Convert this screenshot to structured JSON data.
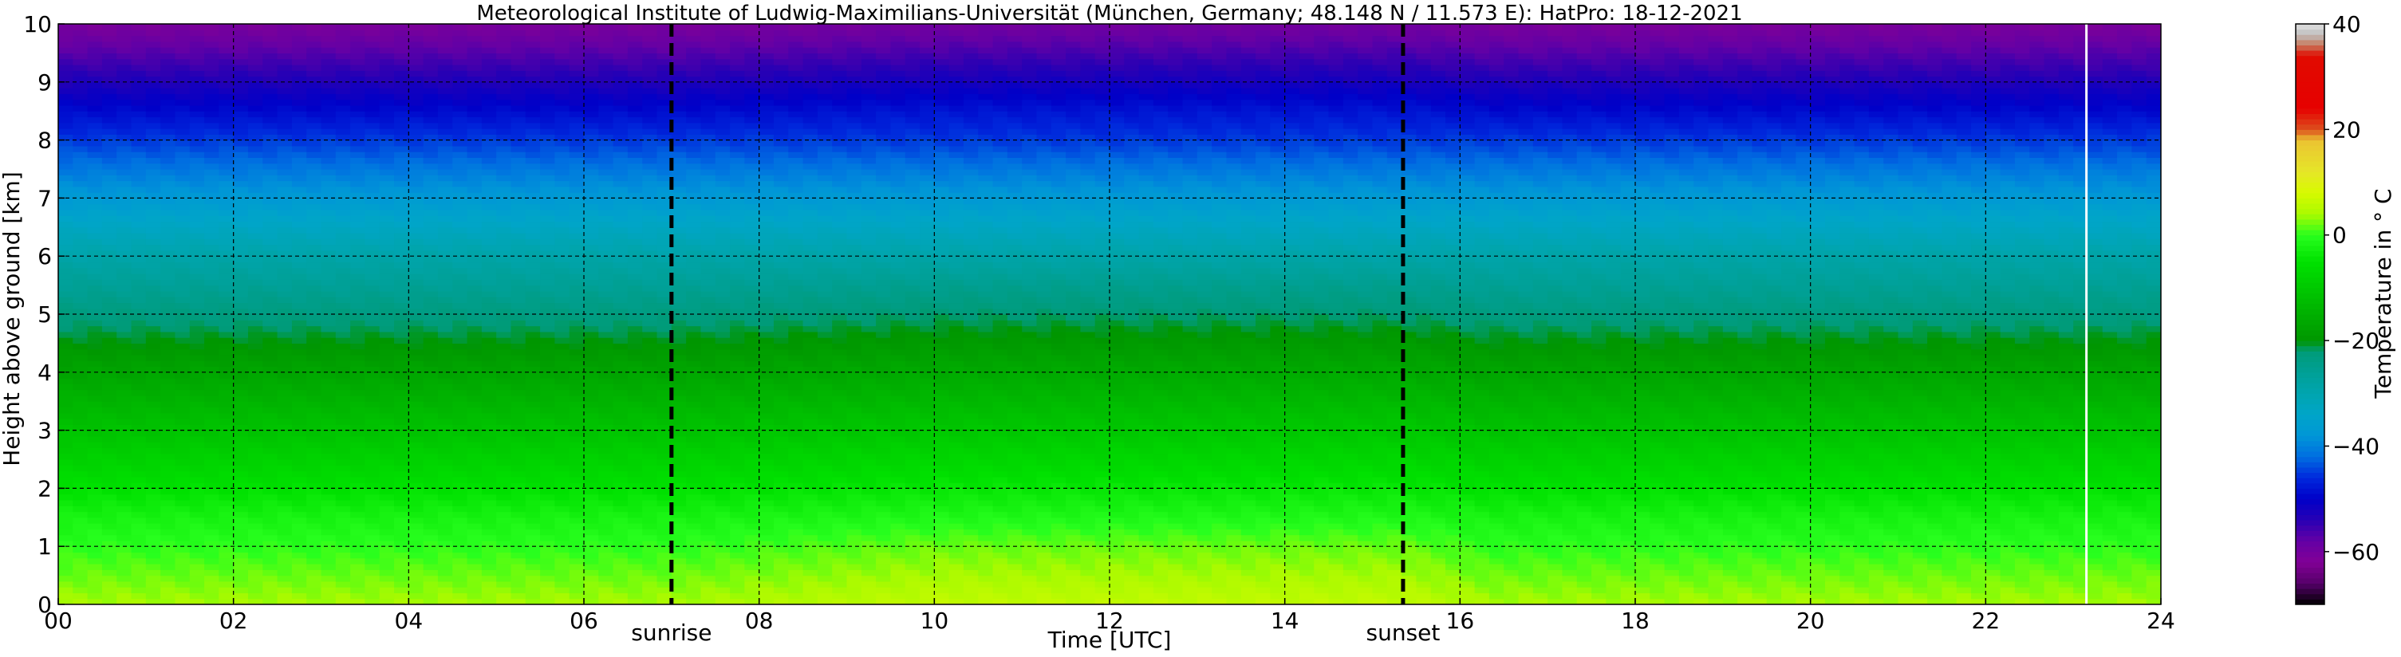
{
  "chart_data": {
    "type": "heatmap",
    "title": "Meteorological Institute of Ludwig-Maximilians-Universität (München, Germany; 48.148 N / 11.573 E):    HatPro: 18-12-2021",
    "xlabel": "Time [UTC]",
    "ylabel": "Height above ground [km]",
    "xlim": [
      0,
      24
    ],
    "ylim": [
      0,
      10
    ],
    "x_ticks": [
      "00",
      "02",
      "04",
      "06",
      "08",
      "10",
      "12",
      "14",
      "16",
      "18",
      "20",
      "22",
      "24"
    ],
    "y_ticks": [
      "0",
      "1",
      "2",
      "3",
      "4",
      "5",
      "6",
      "7",
      "8",
      "9",
      "10"
    ],
    "grid": true,
    "events": [
      {
        "label": "sunrise",
        "time": 7.0
      },
      {
        "label": "sunset",
        "time": 15.35
      }
    ],
    "data_gap_time": 23.15,
    "colorbar": {
      "label": "Temperature in ° C",
      "range": [
        -70,
        40
      ],
      "ticks": [
        "−60",
        "−40",
        "−20",
        "0",
        "20",
        "40"
      ]
    },
    "temperature_profile": {
      "height_km": [
        0,
        0.5,
        1,
        1.5,
        2,
        2.5,
        3,
        3.5,
        4,
        4.5,
        5,
        5.5,
        6,
        6.5,
        7,
        7.5,
        8,
        8.5,
        9,
        9.5,
        10
      ],
      "day_temperature_c": [
        6,
        4,
        2,
        -1,
        -4,
        -7,
        -10,
        -13,
        -16,
        -19,
        -22,
        -25,
        -29,
        -33,
        -37,
        -41,
        -45,
        -48,
        -52,
        -56,
        -60
      ],
      "night_temperature_c": [
        4,
        2,
        0,
        -2,
        -5,
        -8,
        -11,
        -14,
        -17,
        -20,
        -23,
        -26,
        -29,
        -33,
        -37,
        -41,
        -45,
        -49,
        -53,
        -57,
        -61
      ]
    }
  }
}
